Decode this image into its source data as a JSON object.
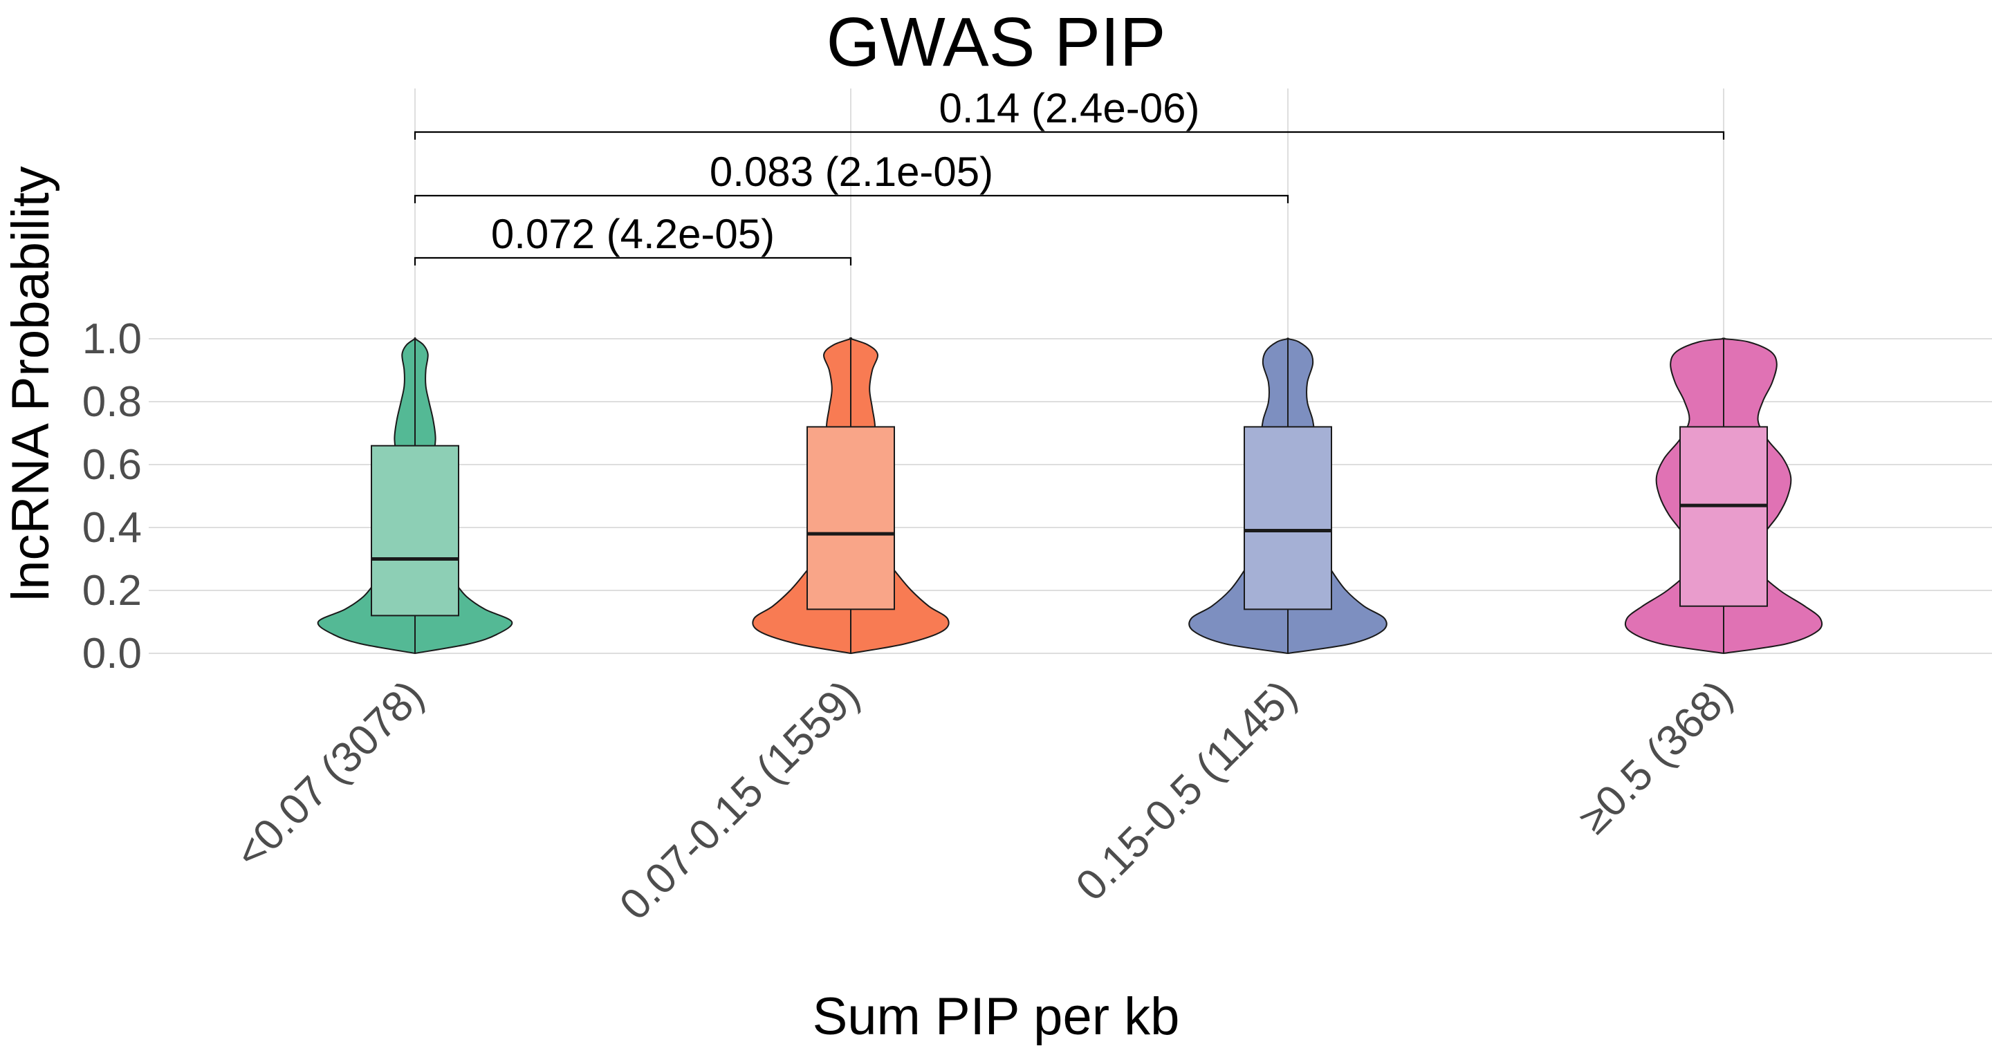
{
  "chart_data": {
    "type": "violin",
    "title": "GWAS PIP",
    "xlabel": "Sum PIP per kb",
    "ylabel": "lncRNA Probability",
    "ylim": [
      0,
      1
    ],
    "y_ticks": [
      "0.0",
      "0.2",
      "0.4",
      "0.6",
      "0.8",
      "1.0"
    ],
    "grid": true,
    "categories": [
      "<0.07 (3078)",
      "0.07-0.15 (1559)",
      "0.15-0.5 (1145)",
      "≥0.5 (368)"
    ],
    "series": [
      {
        "category": "<0.07 (3078)",
        "color": "#54B995",
        "box_color": "#8DCFB5",
        "box": {
          "q1": 0.12,
          "median": 0.3,
          "q3": 0.66
        },
        "whisker": [
          0.0,
          1.0
        ],
        "density": [
          [
            0.0,
            0.0
          ],
          [
            0.03,
            0.5
          ],
          [
            0.06,
            0.76
          ],
          [
            0.1,
            0.9
          ],
          [
            0.14,
            0.65
          ],
          [
            0.18,
            0.48
          ],
          [
            0.22,
            0.38
          ],
          [
            0.26,
            0.27
          ],
          [
            0.32,
            0.17
          ],
          [
            0.38,
            0.1
          ],
          [
            0.44,
            0.07
          ],
          [
            0.5,
            0.07
          ],
          [
            0.56,
            0.09
          ],
          [
            0.62,
            0.16
          ],
          [
            0.68,
            0.19
          ],
          [
            0.74,
            0.17
          ],
          [
            0.8,
            0.13
          ],
          [
            0.85,
            0.1
          ],
          [
            0.9,
            0.1
          ],
          [
            0.95,
            0.12
          ],
          [
            0.98,
            0.08
          ],
          [
            1.0,
            0.0
          ]
        ]
      },
      {
        "category": "0.07-0.15 (1559)",
        "color": "#F87B53",
        "box_color": "#F9A588",
        "box": {
          "q1": 0.14,
          "median": 0.38,
          "q3": 0.72
        },
        "whisker": [
          0.0,
          1.0
        ],
        "density": [
          [
            0.0,
            0.0
          ],
          [
            0.03,
            0.4
          ],
          [
            0.07,
            0.68
          ],
          [
            0.11,
            0.72
          ],
          [
            0.15,
            0.58
          ],
          [
            0.2,
            0.45
          ],
          [
            0.25,
            0.35
          ],
          [
            0.3,
            0.26
          ],
          [
            0.36,
            0.17
          ],
          [
            0.42,
            0.12
          ],
          [
            0.48,
            0.1
          ],
          [
            0.54,
            0.09
          ],
          [
            0.6,
            0.11
          ],
          [
            0.66,
            0.16
          ],
          [
            0.72,
            0.18
          ],
          [
            0.78,
            0.16
          ],
          [
            0.84,
            0.14
          ],
          [
            0.9,
            0.16
          ],
          [
            0.95,
            0.2
          ],
          [
            0.98,
            0.13
          ],
          [
            1.0,
            0.0
          ]
        ]
      },
      {
        "category": "0.15-0.5 (1145)",
        "color": "#7D8FC0",
        "box_color": "#A5B0D5",
        "box": {
          "q1": 0.14,
          "median": 0.39,
          "q3": 0.72
        },
        "whisker": [
          0.0,
          1.0
        ],
        "density": [
          [
            0.0,
            0.0
          ],
          [
            0.03,
            0.45
          ],
          [
            0.07,
            0.68
          ],
          [
            0.11,
            0.7
          ],
          [
            0.15,
            0.55
          ],
          [
            0.2,
            0.42
          ],
          [
            0.26,
            0.32
          ],
          [
            0.32,
            0.24
          ],
          [
            0.38,
            0.16
          ],
          [
            0.44,
            0.12
          ],
          [
            0.5,
            0.11
          ],
          [
            0.56,
            0.12
          ],
          [
            0.62,
            0.16
          ],
          [
            0.68,
            0.19
          ],
          [
            0.74,
            0.18
          ],
          [
            0.8,
            0.14
          ],
          [
            0.86,
            0.14
          ],
          [
            0.92,
            0.18
          ],
          [
            0.96,
            0.16
          ],
          [
            0.99,
            0.08
          ],
          [
            1.0,
            0.0
          ]
        ]
      },
      {
        "category": "≥0.5 (368)",
        "color": "#E072B4",
        "box_color": "#E99CCC",
        "box": {
          "q1": 0.15,
          "median": 0.47,
          "q3": 0.72
        },
        "whisker": [
          0.0,
          1.0
        ],
        "density": [
          [
            0.0,
            0.0
          ],
          [
            0.03,
            0.4
          ],
          [
            0.07,
            0.6
          ],
          [
            0.11,
            0.62
          ],
          [
            0.15,
            0.52
          ],
          [
            0.2,
            0.36
          ],
          [
            0.26,
            0.23
          ],
          [
            0.32,
            0.21
          ],
          [
            0.38,
            0.26
          ],
          [
            0.44,
            0.35
          ],
          [
            0.5,
            0.41
          ],
          [
            0.56,
            0.43
          ],
          [
            0.62,
            0.38
          ],
          [
            0.68,
            0.28
          ],
          [
            0.74,
            0.22
          ],
          [
            0.8,
            0.25
          ],
          [
            0.86,
            0.31
          ],
          [
            0.92,
            0.34
          ],
          [
            0.96,
            0.3
          ],
          [
            0.99,
            0.16
          ],
          [
            1.0,
            0.0
          ]
        ]
      }
    ],
    "comparisons": [
      {
        "from": 0,
        "to": 1,
        "label": "0.072 (4.2e-05)"
      },
      {
        "from": 0,
        "to": 2,
        "label": "0.083 (2.1e-05)"
      },
      {
        "from": 0,
        "to": 3,
        "label": "0.14 (2.4e-06)"
      }
    ]
  }
}
